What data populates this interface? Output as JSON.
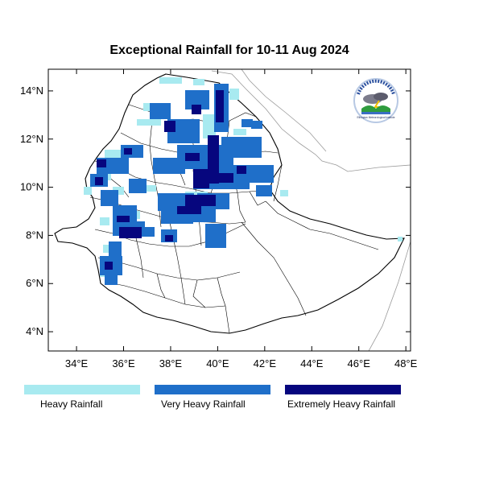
{
  "title": "Exceptional Rainfall for 10-11 Aug 2024",
  "map": {
    "lon_range": [
      32.8,
      48.2
    ],
    "lat_range": [
      3.2,
      14.9
    ],
    "x_ticks": [
      "34°E",
      "36°E",
      "38°E",
      "40°E",
      "42°E",
      "44°E",
      "46°E",
      "48°E"
    ],
    "x_tick_values": [
      34,
      36,
      38,
      40,
      42,
      44,
      46,
      48
    ],
    "y_ticks": [
      "14°N",
      "12°N",
      "10°N",
      "8°N",
      "6°N",
      "4°N"
    ],
    "y_tick_values": [
      14,
      12,
      10,
      8,
      6,
      4
    ]
  },
  "legend": [
    {
      "label": "Heavy Rainfall",
      "color": "#a8eaf0"
    },
    {
      "label": "Very Heavy Rainfall",
      "color": "#1f6fc9"
    },
    {
      "label": "Extremely Heavy Rainfall",
      "color": "#06067e"
    }
  ],
  "logo": {
    "icon": "ethiopian-meteorology-institute-logo",
    "text": "Ethiopian Meteorological Institute"
  }
}
